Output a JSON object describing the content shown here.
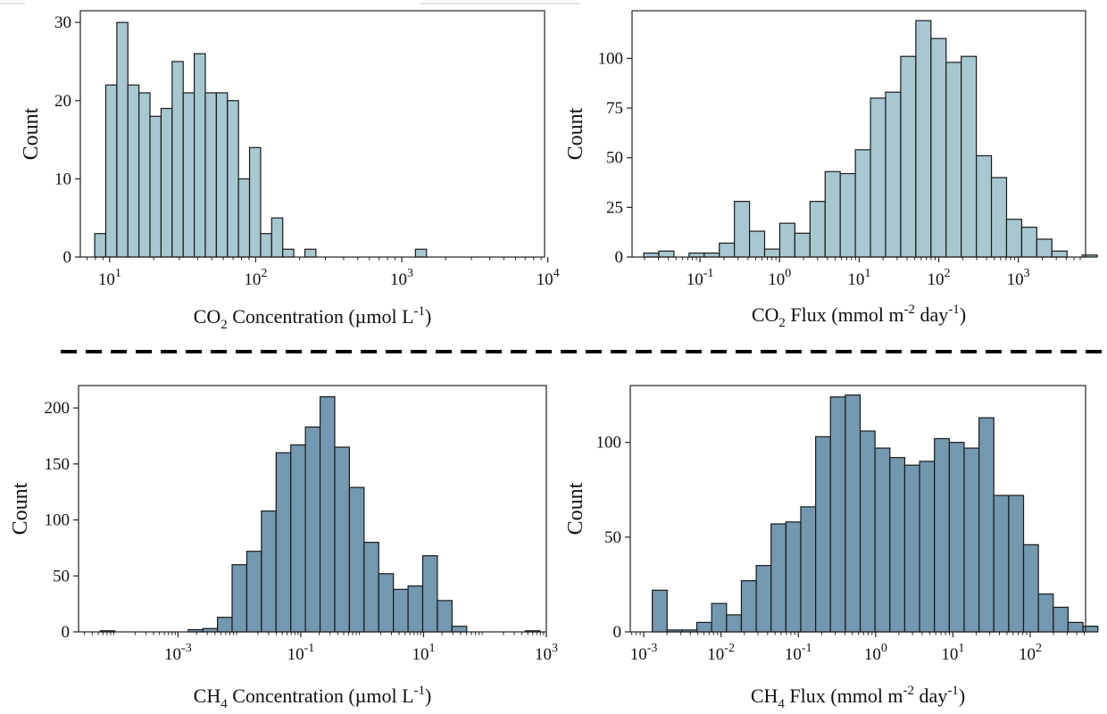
{
  "panel_groups": {
    "co2": {
      "bar_color": "#a7c7d1"
    },
    "ch4": {
      "bar_color": "#7398b0"
    }
  },
  "chart_data": [
    {
      "id": "co2-concentration",
      "type": "bar",
      "title": "",
      "ylabel": "Count",
      "xlabel": {
        "prefix": "CO",
        "sub": "2",
        "rest": " Concentration (µmol L",
        "sup": "-1",
        "close": ")"
      },
      "x_scale": "log",
      "xlim": [
        6.3,
        9500
      ],
      "ylim": [
        0,
        31.5
      ],
      "yticks": [
        0,
        10,
        20,
        30
      ],
      "xticks": [
        {
          "value": 10,
          "base": "10",
          "exp": "1"
        },
        {
          "value": 100,
          "base": "10",
          "exp": "2"
        },
        {
          "value": 1000,
          "base": "10",
          "exp": "3"
        },
        {
          "value": 10000,
          "base": "10",
          "exp": "4"
        }
      ],
      "bin_start": 7.9,
      "bin_ratio": 1.1905,
      "counts": [
        3,
        22,
        30,
        22,
        21,
        18,
        19,
        25,
        21,
        26,
        21,
        21,
        20,
        10,
        14,
        3,
        5,
        1,
        0,
        1,
        0,
        0,
        0,
        0,
        0,
        0,
        0,
        0,
        0,
        1
      ],
      "color_group": "co2"
    },
    {
      "id": "co2-flux",
      "type": "bar",
      "title": "",
      "ylabel": "Count",
      "xlabel": {
        "prefix": "CO",
        "sub": "2",
        "rest": " Flux (mmol m",
        "sup": "-2",
        "mid": " day",
        "sup2": "-1",
        "close": ")"
      },
      "x_scale": "log",
      "xlim": [
        0.014,
        7000
      ],
      "ylim": [
        0,
        124
      ],
      "yticks": [
        0,
        25,
        50,
        75,
        100
      ],
      "xticks": [
        {
          "value": 0.1,
          "base": "10",
          "exp": "-1"
        },
        {
          "value": 1,
          "base": "10",
          "exp": "0"
        },
        {
          "value": 10,
          "base": "10",
          "exp": "1"
        },
        {
          "value": 100,
          "base": "10",
          "exp": "2"
        },
        {
          "value": 1000,
          "base": "10",
          "exp": "3"
        }
      ],
      "bin_start": 0.0196,
      "bin_ratio": 1.5488,
      "counts": [
        2,
        3,
        0,
        2,
        2,
        7,
        28,
        13,
        4,
        17,
        12,
        28,
        43,
        42,
        54,
        80,
        83,
        101,
        119,
        110,
        98,
        101,
        51,
        40,
        19,
        15,
        9,
        3,
        0,
        1
      ],
      "color_group": "co2"
    },
    {
      "id": "ch4-concentration",
      "type": "bar",
      "title": "",
      "ylabel": "Count",
      "xlabel": {
        "prefix": "CH",
        "sub": "4",
        "rest": " Concentration (µmol L",
        "sup": "-1",
        "close": ")"
      },
      "x_scale": "log",
      "xlim": [
        2.4e-05,
        1000
      ],
      "ylim": [
        0,
        220
      ],
      "yticks": [
        0,
        50,
        100,
        150,
        200
      ],
      "xticks": [
        {
          "value": 0.001,
          "base": "10",
          "exp": "-3"
        },
        {
          "value": 0.1,
          "base": "10",
          "exp": "-1"
        },
        {
          "value": 10,
          "base": "10",
          "exp": "1"
        },
        {
          "value": 1000,
          "base": "10",
          "exp": "3"
        }
      ],
      "bin_start": 5.4e-05,
      "bin_ratio": 1.733,
      "counts": [
        1,
        0,
        0,
        0,
        0,
        0,
        2,
        3,
        13,
        60,
        72,
        108,
        160,
        167,
        183,
        210,
        165,
        129,
        80,
        52,
        38,
        41,
        68,
        28,
        5,
        0,
        0,
        0,
        0,
        1
      ],
      "color_group": "ch4"
    },
    {
      "id": "ch4-flux",
      "type": "bar",
      "title": "",
      "ylabel": "Count",
      "xlabel": {
        "prefix": "CH",
        "sub": "4",
        "rest": " Flux (mmol m",
        "sup": "-2",
        "mid": " day",
        "sup2": "-1",
        "close": ")"
      },
      "x_scale": "log",
      "xlim": [
        0.00067,
        520
      ],
      "ylim": [
        0,
        130
      ],
      "yticks": [
        0,
        50,
        100
      ],
      "xticks": [
        {
          "value": 0.001,
          "base": "10",
          "exp": "-3"
        },
        {
          "value": 0.01,
          "base": "10",
          "exp": "-2"
        },
        {
          "value": 0.1,
          "base": "10",
          "exp": "-1"
        },
        {
          "value": 1,
          "base": "10",
          "exp": "0"
        },
        {
          "value": 10,
          "base": "10",
          "exp": "1"
        },
        {
          "value": 100,
          "base": "10",
          "exp": "2"
        }
      ],
      "bin_start": 0.00129,
      "bin_ratio": 1.5564,
      "counts": [
        22,
        1,
        1,
        5,
        15,
        9,
        27,
        35,
        57,
        58,
        66,
        103,
        124,
        125,
        106,
        97,
        92,
        88,
        90,
        102,
        100,
        97,
        113,
        72,
        72,
        46,
        20,
        13,
        5,
        3
      ],
      "color_group": "ch4"
    }
  ]
}
